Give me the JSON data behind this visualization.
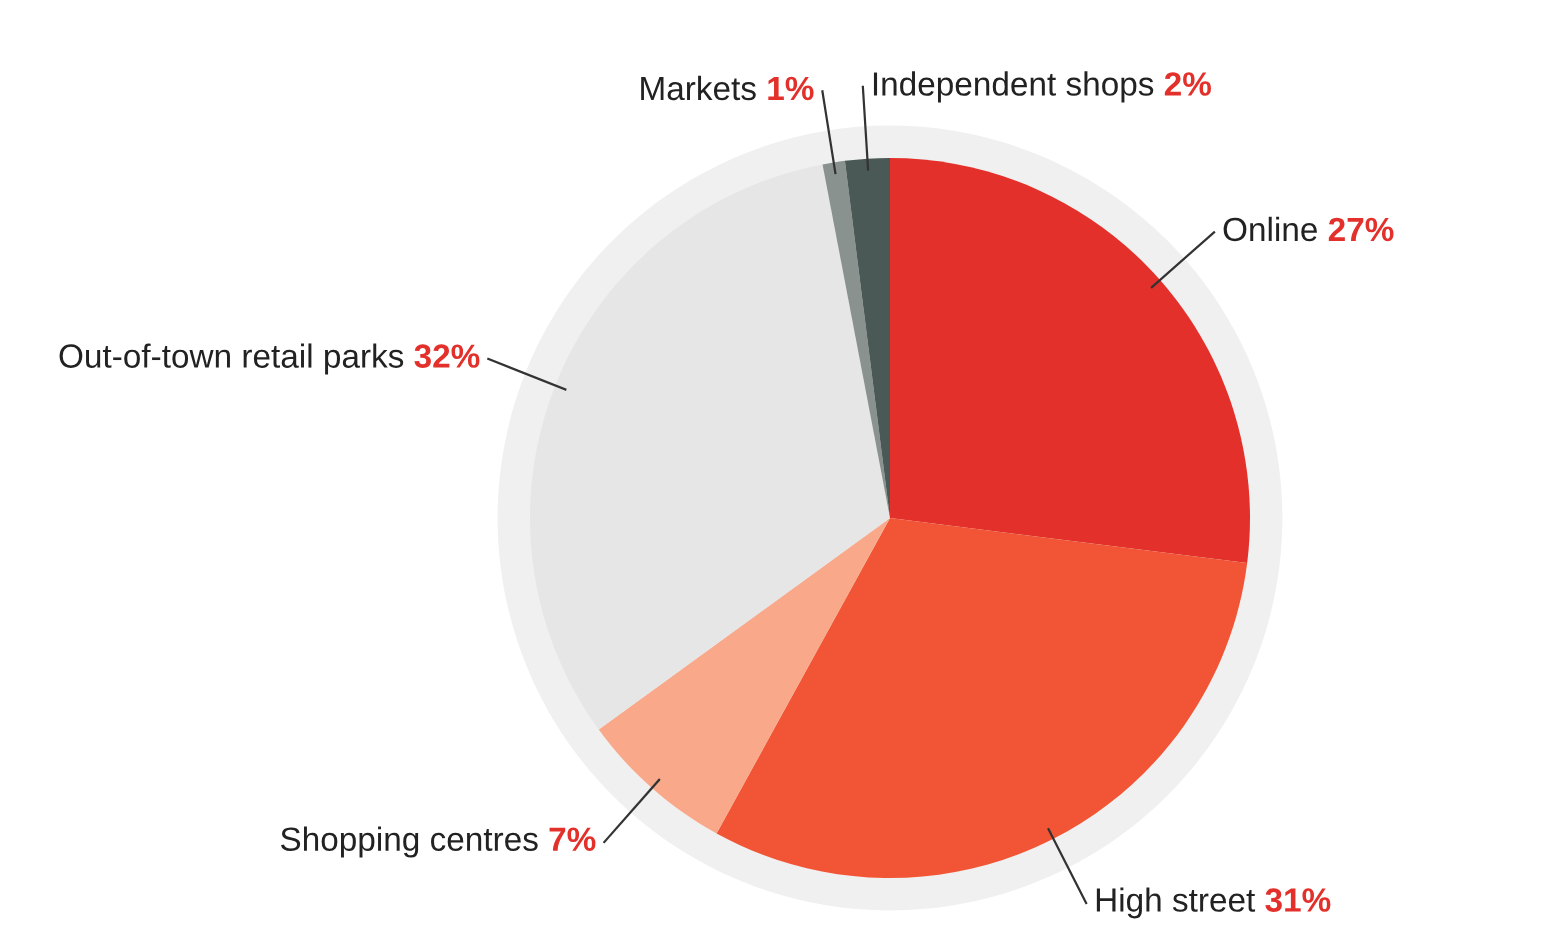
{
  "chart_data": {
    "type": "pie",
    "categories": [
      "Online",
      "High street",
      "Shopping centres",
      "Out-of-town retail parks",
      "Markets",
      "Independent shops"
    ],
    "values": [
      27,
      31,
      7,
      32,
      1,
      2
    ],
    "colors": [
      "#e3302a",
      "#f25535",
      "#f9a98a",
      "#e6e6e6",
      "#8a9290",
      "#4a5856"
    ],
    "value_labels": [
      "27%",
      "31%",
      "7%",
      "32%",
      "1%",
      "2%"
    ]
  }
}
